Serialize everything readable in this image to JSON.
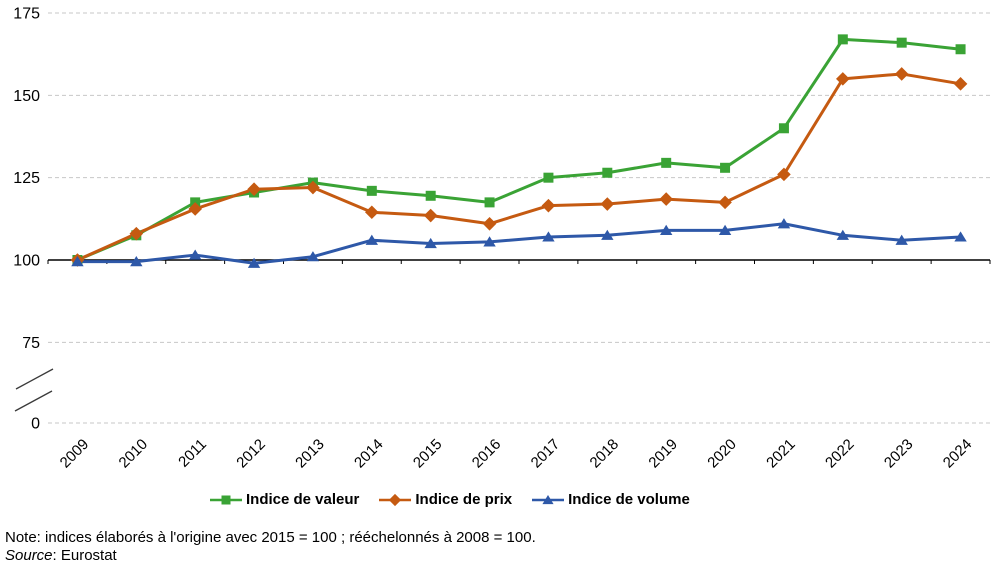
{
  "chart_data": {
    "type": "line",
    "title": "",
    "categories": [
      "2009",
      "2010",
      "2011",
      "2012",
      "2013",
      "2014",
      "2015",
      "2016",
      "2017",
      "2018",
      "2019",
      "2020",
      "2021",
      "2022",
      "2023",
      "2024"
    ],
    "series": [
      {
        "name": "Indice de valeur",
        "color": "#3aa335",
        "marker": "square",
        "values": [
          100,
          107.5,
          117.5,
          120.5,
          123.5,
          121,
          119.5,
          117.5,
          125,
          126.5,
          129.5,
          128,
          140,
          167,
          166,
          164
        ]
      },
      {
        "name": "Indice de prix",
        "color": "#c55a11",
        "marker": "diamond",
        "values": [
          100,
          108,
          115.5,
          121.5,
          122,
          114.5,
          113.5,
          111,
          116.5,
          117,
          118.5,
          117.5,
          126,
          155,
          156.5,
          153.5
        ]
      },
      {
        "name": "Indice de volume",
        "color": "#2e58a8",
        "marker": "triangle",
        "values": [
          99.5,
          99.5,
          101.5,
          99,
          101,
          106,
          105,
          105.5,
          107,
          107.5,
          109,
          109,
          111,
          107.5,
          106,
          107
        ]
      }
    ],
    "y_axis": {
      "ticks": [
        175,
        150,
        125,
        100,
        75,
        0
      ],
      "baseline_value": 100,
      "axis_break_between": [
        75,
        0
      ]
    },
    "x_axis": {
      "label_rotation_deg": -45
    },
    "grid": {
      "style": "dashed",
      "color": "#c7c7c7"
    },
    "legend_position": "bottom",
    "xlabel": "",
    "ylabel": ""
  },
  "footer": {
    "note": "Note: indices élaborés à l'origine avec 2015 = 100 ; rééchelonnés à 2008 = 100.",
    "source_label": "Source",
    "source_rest": ": Eurostat"
  }
}
